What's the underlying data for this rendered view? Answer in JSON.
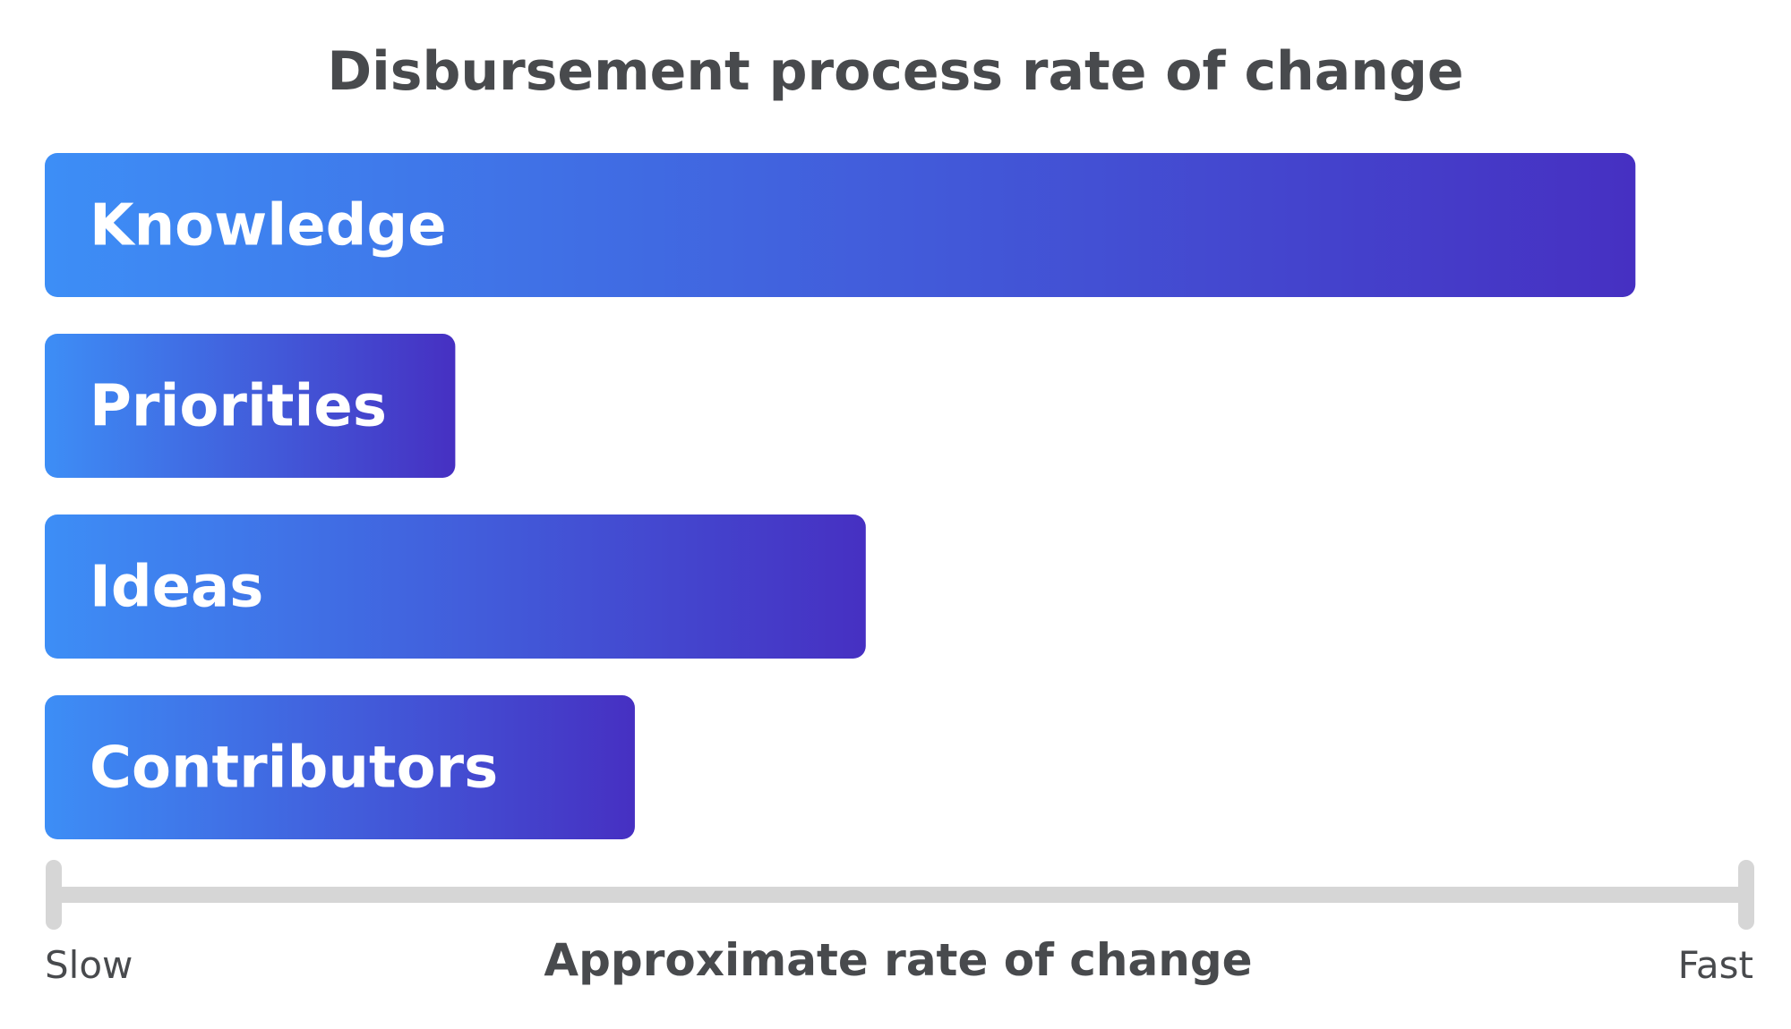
{
  "chart_data": {
    "type": "bar",
    "orientation": "horizontal",
    "title": "Disbursement process rate of change",
    "xlabel": "Approximate rate of change",
    "ylabel": "",
    "axis_min_label": "Slow",
    "axis_max_label": "Fast",
    "categories": [
      "Knowledge",
      "Priorities",
      "Ideas",
      "Contributors"
    ],
    "values": [
      0.93,
      0.24,
      0.48,
      0.345
    ],
    "xlim": [
      0,
      1
    ],
    "grid": false,
    "legend": "none",
    "colors": {
      "bar_gradient_start": "#3D8EF6",
      "bar_gradient_end": "#4630C2",
      "bar_label": "#FFFFFF",
      "title": "#484A4D",
      "axis_line": "#D6D6D6",
      "axis_text": "#484A4D"
    }
  }
}
